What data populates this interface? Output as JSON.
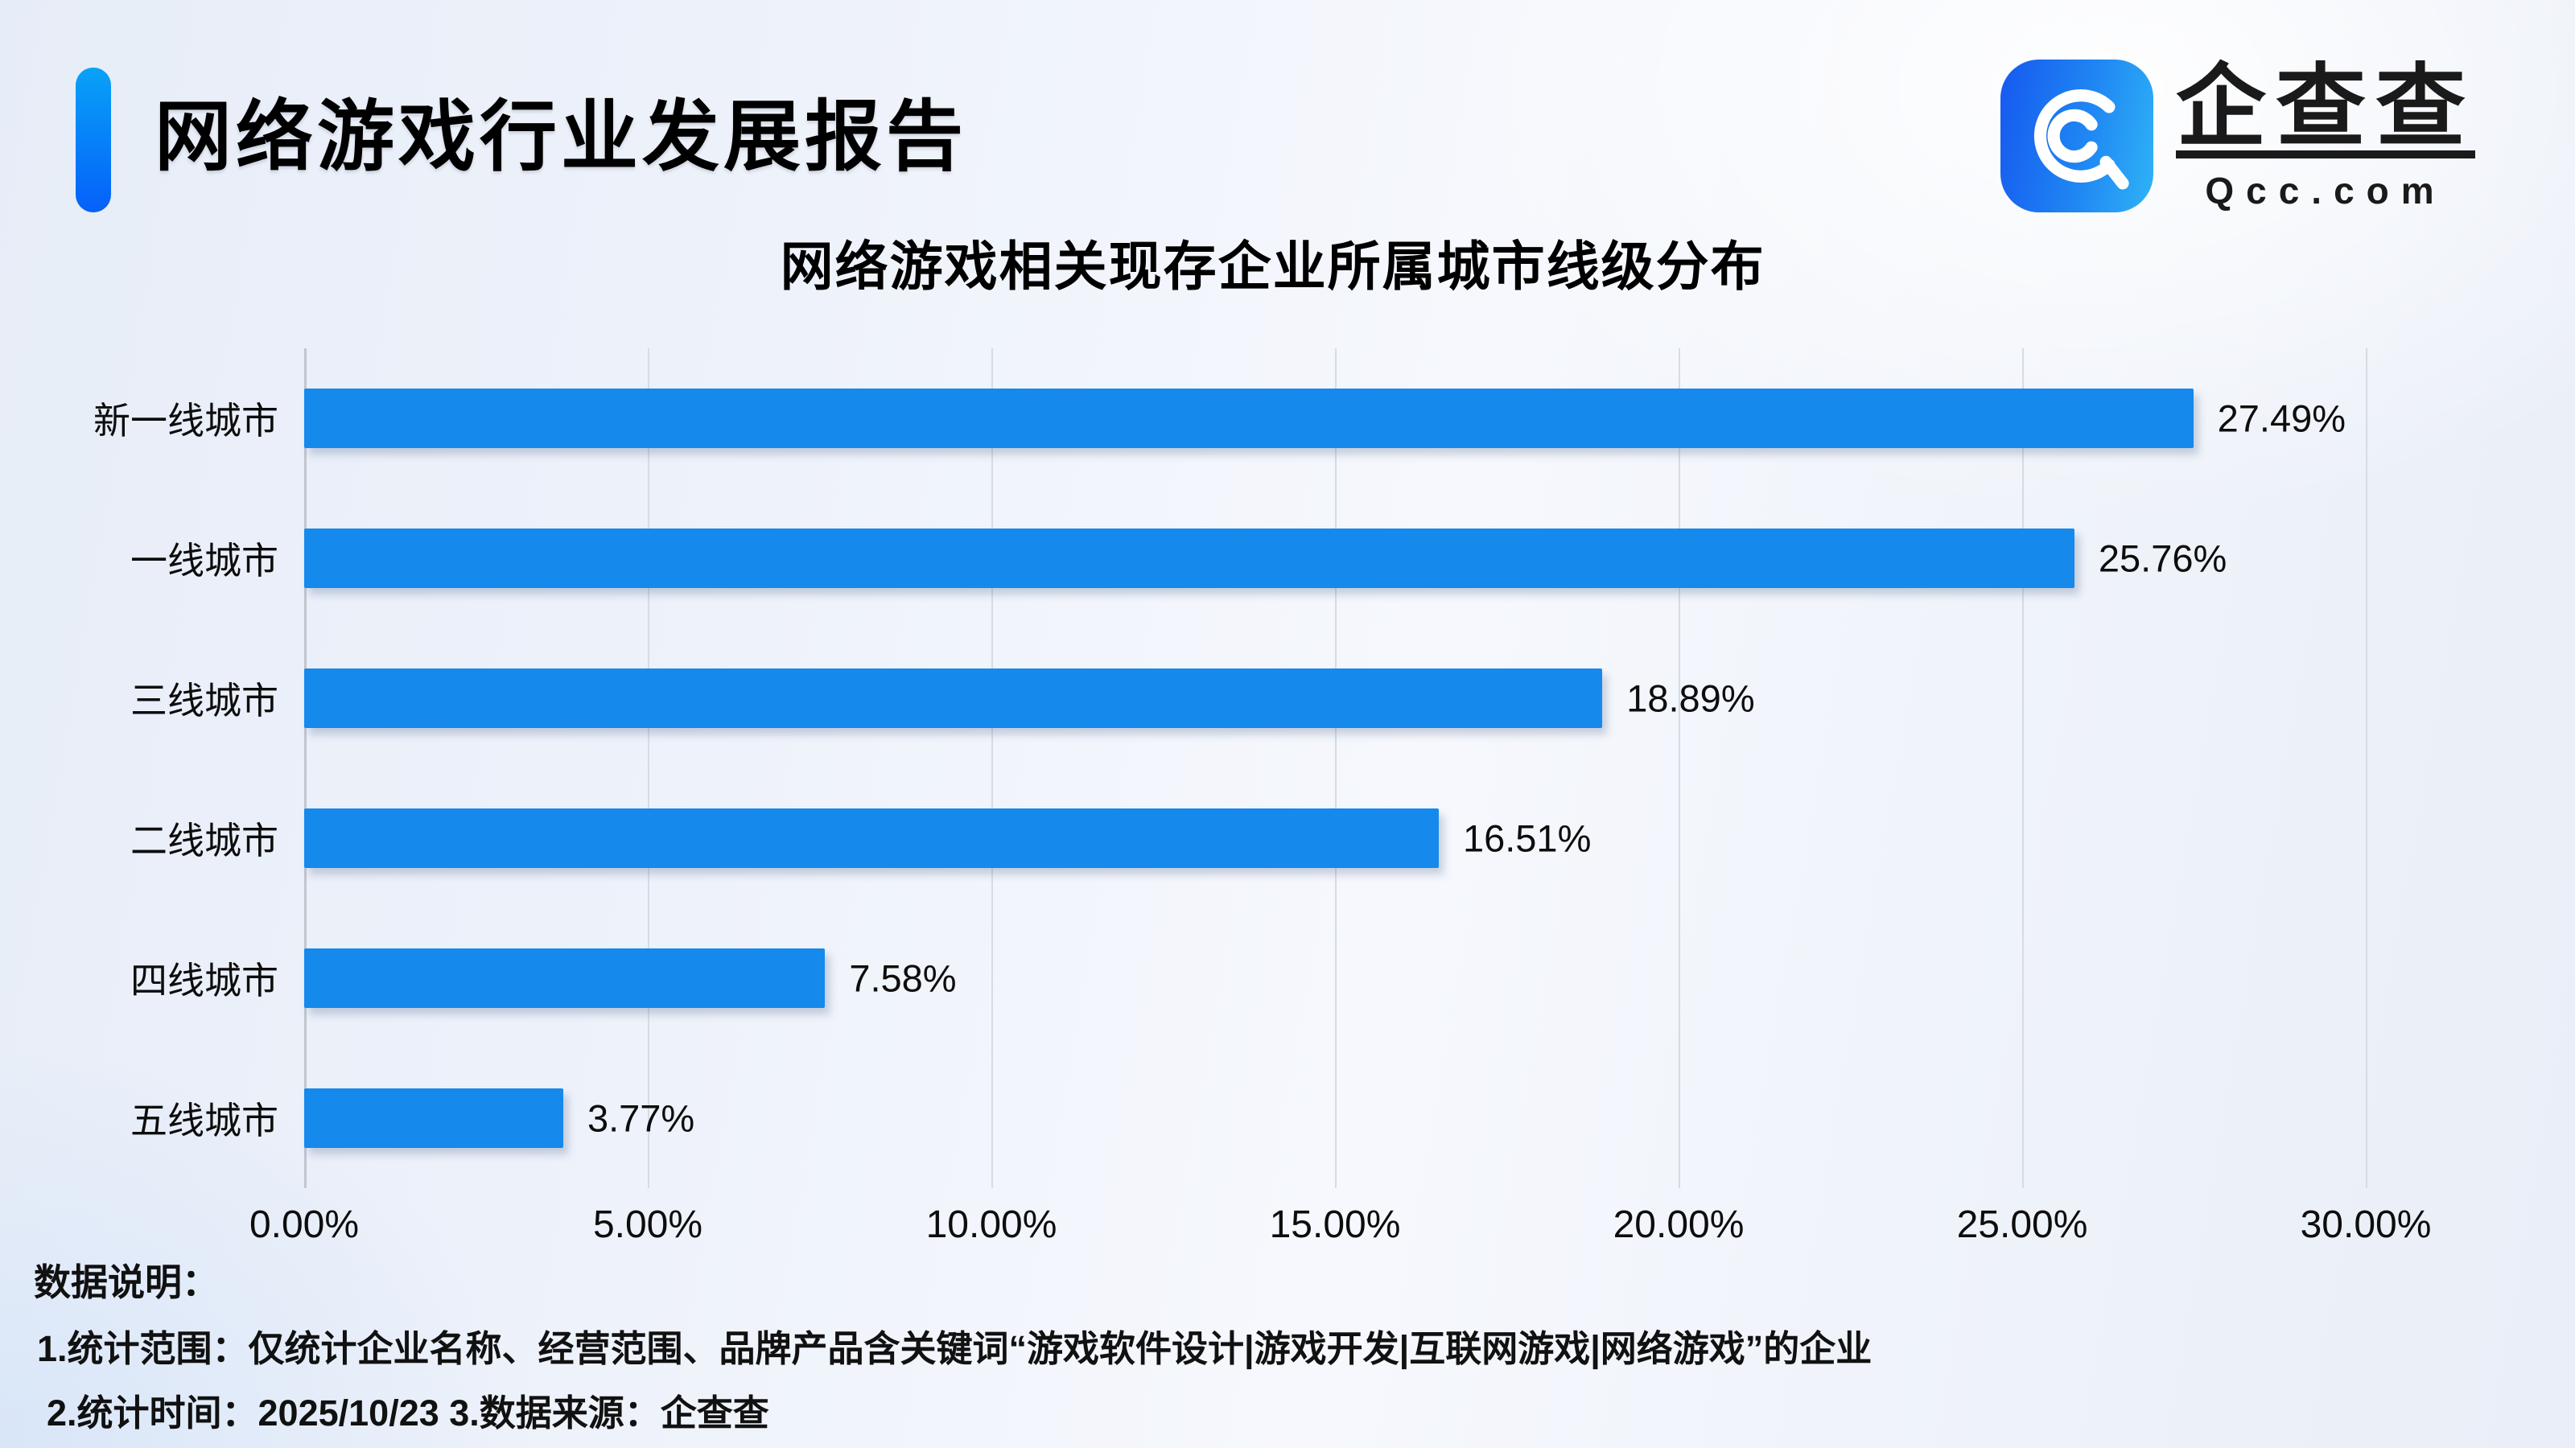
{
  "page": {
    "report_title": "网络游戏行业发展报告"
  },
  "logo": {
    "brand_name": "企查查",
    "brand_domain": "Qcc.com"
  },
  "chart_data": {
    "type": "bar",
    "orientation": "horizontal",
    "title": "网络游戏相关现存企业所属城市线级分布",
    "categories": [
      "新一线城市",
      "一线城市",
      "三线城市",
      "二线城市",
      "四线城市",
      "五线城市"
    ],
    "values": [
      27.49,
      25.76,
      18.89,
      16.51,
      7.58,
      3.77
    ],
    "value_labels": [
      "27.49%",
      "25.76%",
      "18.89%",
      "16.51%",
      "7.58%",
      "3.77%"
    ],
    "xlabel": "",
    "ylabel": "",
    "xlim": [
      0,
      30
    ],
    "x_ticks": [
      0,
      5,
      10,
      15,
      20,
      25,
      30
    ],
    "x_tick_labels": [
      "0.00%",
      "5.00%",
      "10.00%",
      "15.00%",
      "20.00%",
      "25.00%",
      "30.00%"
    ],
    "grid": true,
    "legend": false,
    "bar_color": "#1589ec"
  },
  "footer": {
    "heading": "数据说明：",
    "notes": [
      "1.统计范围：仅统计企业名称、经营范围、品牌产品含关键词“游戏软件设计|游戏开发|互联网游戏|网络游戏”的企业",
      "2.统计时间：2025/10/23 3.数据来源：企查查"
    ]
  },
  "colors": {
    "bar": "#1589ec",
    "accent_top": "#09a2f7",
    "accent_bottom": "#0560fa",
    "logo_left": "#1659ef",
    "logo_right": "#2fb3f7",
    "gridline": "#d7dbe3",
    "axis_line": "#c2c6ce",
    "text": "#111111"
  }
}
